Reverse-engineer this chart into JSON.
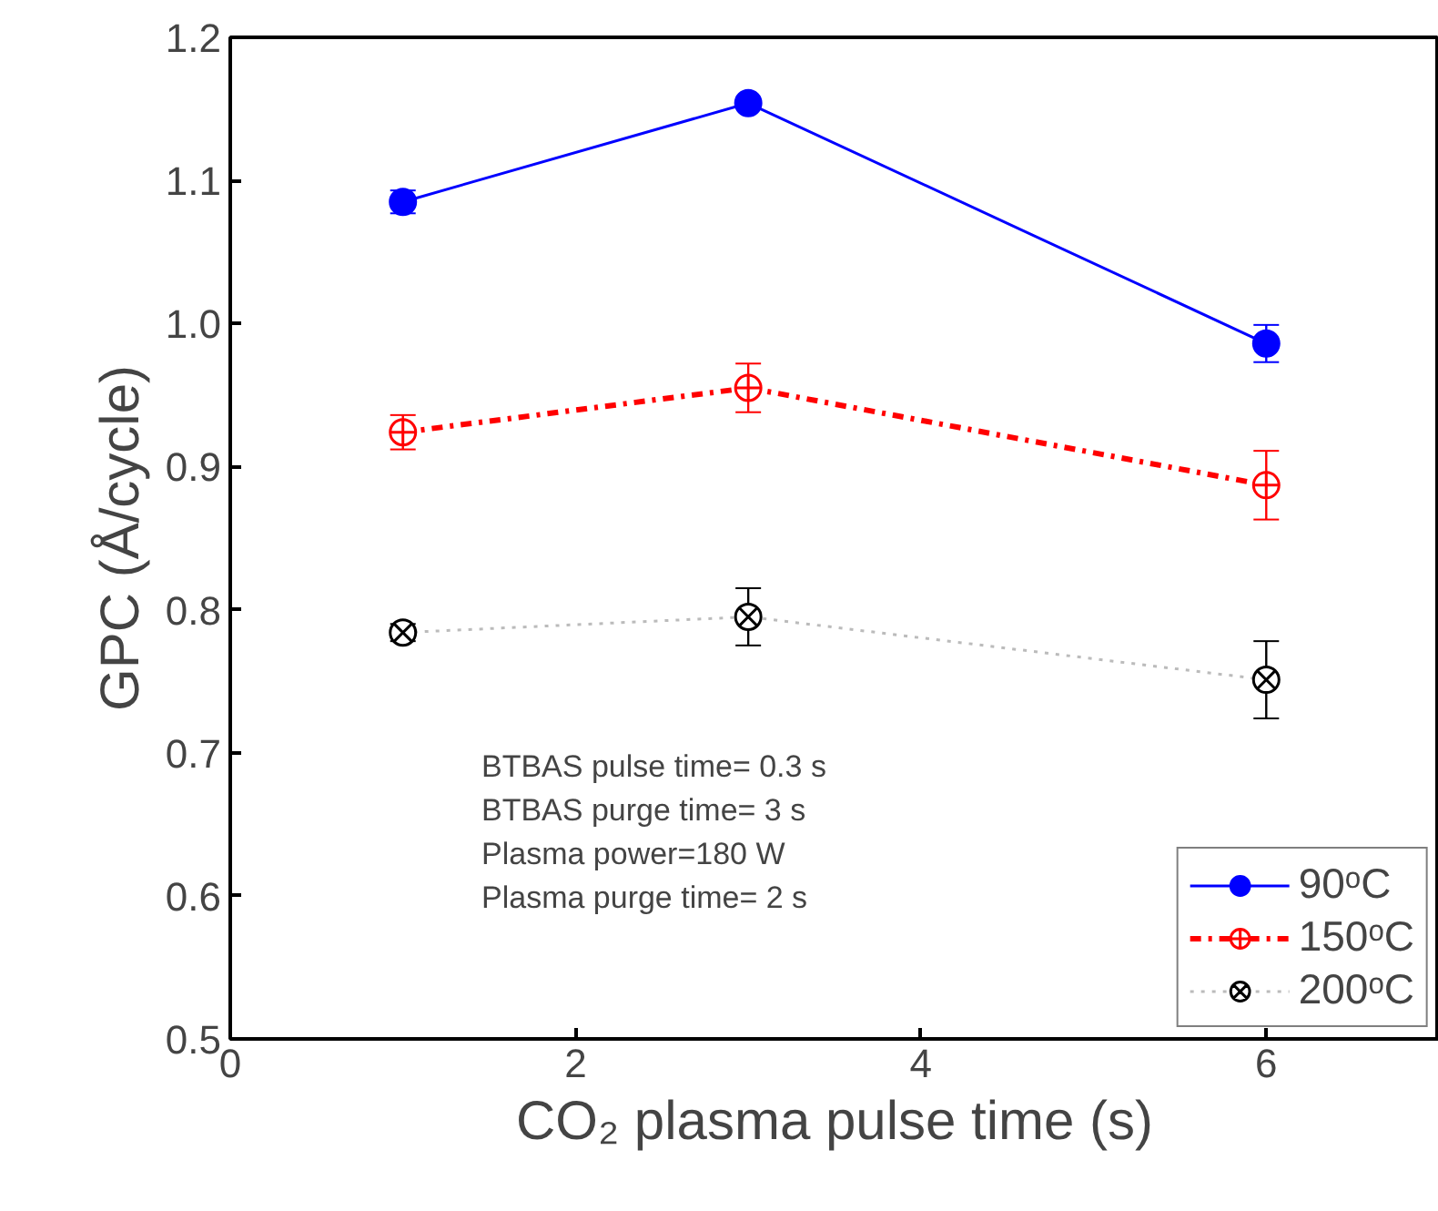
{
  "chart_data": {
    "type": "line",
    "xlabel": "CO₂ plasma pulse time (s)",
    "ylabel": "GPC (Å/cycle)",
    "x": [
      1,
      3,
      6
    ],
    "series": [
      {
        "name": "90ᵒC",
        "color": "#0000ff",
        "values": [
          1.085,
          1.154,
          0.986
        ],
        "errors": [
          0.008,
          0.003,
          0.013
        ],
        "marker": "circle",
        "line_style": "solid"
      },
      {
        "name": "150ᵒC",
        "color": "#ff0000",
        "values": [
          0.924,
          0.955,
          0.887
        ],
        "errors": [
          0.012,
          0.017,
          0.024
        ],
        "marker": "circle",
        "line_style": "dashdot"
      },
      {
        "name": "200ᵒC",
        "color": "#000000",
        "values": [
          0.784,
          0.795,
          0.751
        ],
        "errors": [
          0.006,
          0.02,
          0.027
        ],
        "marker": "cross",
        "line_style": "dotted"
      }
    ],
    "xlim": [
      0,
      7
    ],
    "xticks": [
      0,
      2,
      4,
      6
    ],
    "ylim": [
      0.5,
      1.2
    ],
    "yticks": [
      0.5,
      0.6,
      0.7,
      0.8,
      0.9,
      {
        "value": 1.0,
        "label": "1.0"
      },
      1.1,
      1.2
    ],
    "grid": false,
    "legend": "bottom right",
    "annotations": [
      "BTBAS pulse time= 0.3 s",
      "BTBAS purge time= 3 s",
      "Plasma power=180 W",
      "Plasma purge time= 2 s"
    ]
  }
}
